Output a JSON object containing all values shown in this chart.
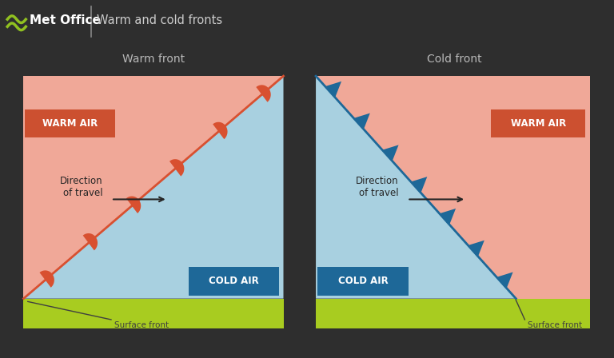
{
  "bg_color": "#2e2e2e",
  "header_color": "#1e1e1e",
  "warm_air_color": "#f0a898",
  "cold_air_color": "#a8d0e0",
  "ground_color": "#a8cc20",
  "front_line_warm_color": "#d85030",
  "front_line_cold_color": "#1e6898",
  "warm_air_label_bg": "#cc5030",
  "cold_air_label_bg": "#1e6898",
  "label_text_color": "#ffffff",
  "title_color": "#b8b8b8",
  "annotation_color": "#303030",
  "header_title": "Warm and cold fronts",
  "warm_front_title": "Warm front",
  "cold_front_title": "Cold front",
  "direction_label": "Direction\nof travel",
  "surface_front_label": "Surface front",
  "warm_air_label": "WARM AIR",
  "cold_air_label": "COLD AIR"
}
